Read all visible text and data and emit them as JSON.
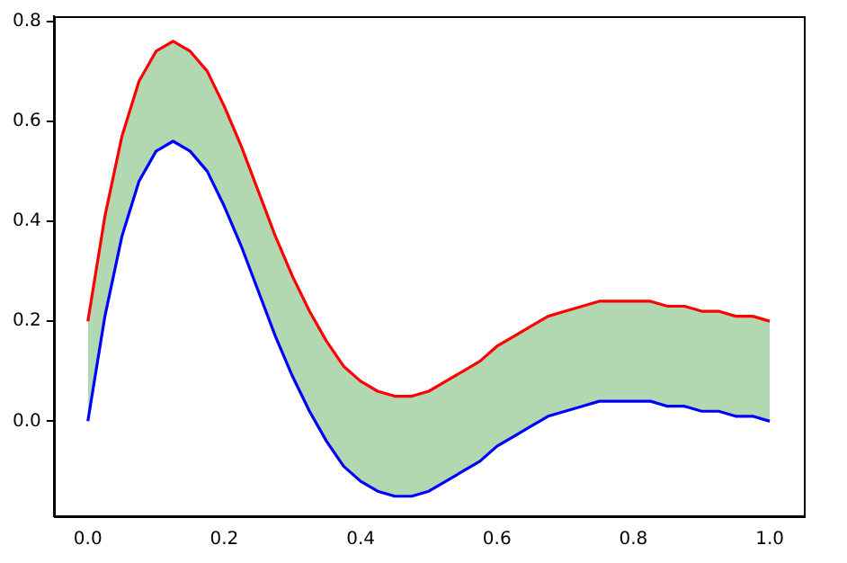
{
  "chart_data": {
    "type": "line",
    "x": [
      0,
      0.025,
      0.05,
      0.075,
      0.1,
      0.125,
      0.15,
      0.175,
      0.2,
      0.225,
      0.25,
      0.275,
      0.3,
      0.325,
      0.35,
      0.375,
      0.4,
      0.425,
      0.45,
      0.475,
      0.5,
      0.525,
      0.55,
      0.575,
      0.6,
      0.625,
      0.65,
      0.675,
      0.7,
      0.725,
      0.75,
      0.775,
      0.8,
      0.825,
      0.85,
      0.875,
      0.9,
      0.925,
      0.95,
      0.975,
      1
    ],
    "series": [
      {
        "color": "#0000ff",
        "values": [
          0,
          0.21,
          0.37,
          0.48,
          0.54,
          0.56,
          0.54,
          0.5,
          0.43,
          0.35,
          0.26,
          0.17,
          0.09,
          0.02,
          -0.04,
          -0.09,
          -0.12,
          -0.14,
          -0.15,
          -0.15,
          -0.14,
          -0.12,
          -0.1,
          -0.08,
          -0.05,
          -0.03,
          -0.01,
          0.01,
          0.02,
          0.03,
          0.04,
          0.04,
          0.04,
          0.04,
          0.03,
          0.03,
          0.02,
          0.02,
          0.01,
          0.01,
          0
        ]
      },
      {
        "color": "#ff0000",
        "colors": [
          "#b2d8b2",
          "#b2d8b2",
          "#b2d8b2",
          "#b2d8b2",
          "#b2d8b2",
          "#b2d8b2",
          "#b2d8b2",
          "#b2d8b2",
          "#b2d8b2",
          "#b2d8b2",
          "#b2d8b2",
          "#b2d8b2",
          "#b2d8b2",
          "#b2d8b2",
          "#b2d8b2",
          "#b2d8b2",
          "#b2d8b2",
          "#b2d8b2",
          "#b2d8b2",
          "#b2d8b2",
          "#b2d8b2",
          "#b2d8b2",
          "#b2d8b2",
          "#b2d8b2",
          "#b2d8b2",
          "#b2d8b2",
          "#b2d8b2",
          "#b2d8b2",
          "#b2d8b2",
          "#b2d8b2",
          "#b2d8b2",
          "#b2d8b2",
          "#b2d8b2",
          "#b2d8b2",
          "#b2d8b2",
          "#b2d8b2",
          "#b2d8b2",
          "#b2d8b2",
          "#b2d8b2",
          "#b2d8b2",
          "#b2d8b2"
        ],
        "values": [
          0.2,
          0.41,
          0.57,
          0.68,
          0.74,
          0.76,
          0.74,
          0.7,
          0.63,
          0.55,
          0.46,
          0.37,
          0.29,
          0.22,
          0.16,
          0.11,
          0.08,
          0.06,
          0.05,
          0.05,
          0.06,
          0.08,
          0.1,
          0.12,
          0.15,
          0.17,
          0.19,
          0.21,
          0.22,
          0.23,
          0.24,
          0.24,
          0.24,
          0.24,
          0.23,
          0.23,
          0.22,
          0.22,
          0.21,
          0.21,
          0.2
        ],
        "lower": [
          0,
          0.21,
          0.37,
          0.48,
          0.54,
          0.56,
          0.54,
          0.5,
          0.43,
          0.35,
          0.26,
          0.17,
          0.09,
          0.02,
          -0.04,
          -0.09,
          -0.12,
          -0.14,
          -0.15,
          -0.15,
          -0.14,
          -0.12,
          -0.1,
          -0.08,
          -0.05,
          -0.03,
          -0.01,
          0.01,
          0.02,
          0.03,
          0.04,
          0.04,
          0.04,
          0.04,
          0.03,
          0.03,
          0.02,
          0.02,
          0.01,
          0.01,
          0
        ],
        "upper": [
          0.2,
          0.41,
          0.57,
          0.68,
          0.74,
          0.76,
          0.74,
          0.7,
          0.63,
          0.55,
          0.46,
          0.37,
          0.29,
          0.22,
          0.16,
          0.11,
          0.08,
          0.06,
          0.05,
          0.05,
          0.06,
          0.08,
          0.1,
          0.12,
          0.15,
          0.17,
          0.19,
          0.21,
          0.22,
          0.23,
          0.24,
          0.24,
          0.24,
          0.24,
          0.23,
          0.23,
          0.22,
          0.22,
          0.21,
          0.21,
          0.2
        ]
      }
    ],
    "xlim": [
      -0.05,
      1.05
    ],
    "xticks": [
      {
        "value": 0,
        "label": "0.0"
      },
      {
        "value": 0.2,
        "label": "0.2"
      },
      {
        "value": 0.4,
        "label": "0.4"
      },
      {
        "value": 0.6,
        "label": "0.6"
      },
      {
        "value": 0.8,
        "label": "0.8"
      },
      {
        "value": 1,
        "label": "1.0"
      }
    ],
    "ylim": [
      -0.19,
      0.81
    ],
    "yticks": [
      {
        "value": 0,
        "label": "0.0"
      },
      {
        "value": 0.2,
        "label": "0.2"
      },
      {
        "value": 0.4,
        "label": "0.4"
      },
      {
        "value": 0.6,
        "label": "0.6"
      },
      {
        "value": 0.8,
        "label": "0.8"
      }
    ],
    "grid": false,
    "legend": false,
    "marker": "none",
    "line_style": "solid"
  }
}
